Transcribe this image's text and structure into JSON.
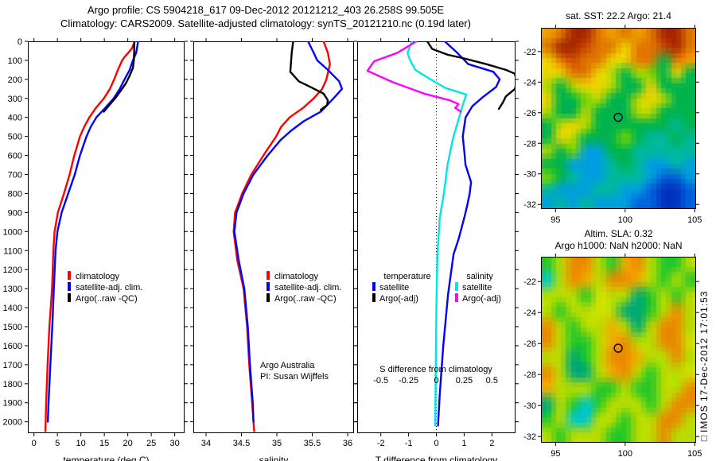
{
  "header": {
    "line1": "Argo profile: CS 5904218_617 09-Dec-2012 20121212_403 26.258S 99.505E",
    "line2": "Climatology: CARS2009. Satellite-adjusted climatology: synTS_20121210.nc (0.19d later)"
  },
  "colors": {
    "climatology": "#ff0000",
    "satellite_adjusted": "#0000ff",
    "argo": "#000000",
    "salinity_satellite": "#00e6e6",
    "salinity_argo": "#ff00ff"
  },
  "watermark": {
    "text": "□IMOS 17-Dec-2012 17:01:53"
  },
  "chart_data": [
    {
      "id": "temperature-profile",
      "type": "line",
      "xlabel": "temperature (deg C)",
      "xlim": [
        -1.3,
        32.1
      ],
      "xticks": [
        0,
        5,
        10,
        15,
        20,
        25,
        30
      ],
      "xtick_labels": [
        "0",
        "5",
        "10",
        "15",
        "20",
        "25",
        "30"
      ],
      "ylim": [
        0,
        2060
      ],
      "ytick_step": 100,
      "ytick_labels_shown": true,
      "legend": [
        {
          "label": "climatology",
          "color": "#ff0000"
        },
        {
          "label": "satellite-adj. clim.",
          "color": "#0000ff"
        },
        {
          "label": "Argo(..raw -QC)",
          "color": "#000000"
        }
      ],
      "series": [
        {
          "name": "climatology",
          "color": "#ff0000",
          "unit_scale": 1,
          "points": [
            [
              0,
              21.5
            ],
            [
              40,
              20.8
            ],
            [
              80,
              19.4
            ],
            [
              100,
              18.8
            ],
            [
              150,
              17.9
            ],
            [
              200,
              17.1
            ],
            [
              250,
              16.2
            ],
            [
              300,
              14.9
            ],
            [
              350,
              13.2
            ],
            [
              400,
              11.8
            ],
            [
              450,
              10.7
            ],
            [
              500,
              9.8
            ],
            [
              600,
              8.6
            ],
            [
              700,
              7.6
            ],
            [
              800,
              6.4
            ],
            [
              900,
              5.1
            ],
            [
              1000,
              4.4
            ],
            [
              1100,
              4.15
            ],
            [
              1300,
              3.85
            ],
            [
              1500,
              3.3
            ],
            [
              1700,
              2.9
            ],
            [
              1900,
              2.6
            ],
            [
              2050,
              2.45
            ]
          ]
        },
        {
          "name": "satellite-adj-clim",
          "color": "#0000ff",
          "unit_scale": 1,
          "points": [
            [
              0,
              22.2
            ],
            [
              60,
              21.8
            ],
            [
              100,
              21.1
            ],
            [
              150,
              20.4
            ],
            [
              200,
              19.3
            ],
            [
              250,
              18.3
            ],
            [
              300,
              17.0
            ],
            [
              350,
              15.2
            ],
            [
              400,
              13.3
            ],
            [
              450,
              12.1
            ],
            [
              500,
              11.2
            ],
            [
              600,
              9.8
            ],
            [
              700,
              8.7
            ],
            [
              800,
              7.3
            ],
            [
              900,
              5.9
            ],
            [
              1000,
              5.0
            ],
            [
              1100,
              4.6
            ],
            [
              1300,
              4.25
            ],
            [
              1500,
              3.9
            ],
            [
              1700,
              3.5
            ],
            [
              1900,
              3.1
            ],
            [
              2000,
              2.95
            ]
          ]
        },
        {
          "name": "argo-raw",
          "color": "#000000",
          "unit_scale": 1,
          "points": [
            [
              0,
              21.4
            ],
            [
              60,
              21.35
            ],
            [
              100,
              21.3
            ],
            [
              140,
              21.1
            ],
            [
              180,
              20.4
            ],
            [
              220,
              19.6
            ],
            [
              260,
              18.5
            ],
            [
              300,
              17.3
            ],
            [
              340,
              15.9
            ],
            [
              370,
              14.9
            ]
          ]
        }
      ]
    },
    {
      "id": "salinity-profile",
      "type": "line",
      "xlabel": "salinity",
      "xlim": [
        33.82,
        36.09
      ],
      "xticks": [
        34,
        34.5,
        35,
        35.5,
        36
      ],
      "xtick_labels": [
        "34",
        "34.5",
        "35",
        "35.5",
        "36"
      ],
      "ylim": [
        0,
        2060
      ],
      "ytick_step": 100,
      "ytick_labels_shown": false,
      "legend": [
        {
          "label": "climatology",
          "color": "#ff0000"
        },
        {
          "label": "satellite-adj. clim.",
          "color": "#0000ff"
        },
        {
          "label": "Argo(..raw -QC)",
          "color": "#000000"
        }
      ],
      "annotations": [
        {
          "text": "Argo Australia"
        },
        {
          "text": "PI: Susan Wijffels"
        }
      ],
      "series": [
        {
          "name": "climatology",
          "color": "#ff0000",
          "unit_scale": 1,
          "points": [
            [
              0,
              35.66
            ],
            [
              60,
              35.72
            ],
            [
              120,
              35.75
            ],
            [
              200,
              35.7
            ],
            [
              250,
              35.64
            ],
            [
              300,
              35.52
            ],
            [
              350,
              35.37
            ],
            [
              400,
              35.18
            ],
            [
              450,
              35.06
            ],
            [
              500,
              34.99
            ],
            [
              600,
              34.81
            ],
            [
              700,
              34.64
            ],
            [
              800,
              34.51
            ],
            [
              900,
              34.41
            ],
            [
              1000,
              34.39
            ],
            [
              1150,
              34.44
            ],
            [
              1300,
              34.53
            ],
            [
              1500,
              34.58
            ],
            [
              1700,
              34.61
            ],
            [
              1900,
              34.65
            ],
            [
              2050,
              34.68
            ]
          ]
        },
        {
          "name": "satellite-adj-clim",
          "color": "#0000ff",
          "unit_scale": 1,
          "points": [
            [
              0,
              35.44
            ],
            [
              60,
              35.52
            ],
            [
              100,
              35.57
            ],
            [
              150,
              35.72
            ],
            [
              210,
              35.88
            ],
            [
              250,
              35.92
            ],
            [
              300,
              35.8
            ],
            [
              370,
              35.62
            ],
            [
              420,
              35.38
            ],
            [
              470,
              35.2
            ],
            [
              520,
              35.05
            ],
            [
              600,
              34.87
            ],
            [
              700,
              34.67
            ],
            [
              800,
              34.53
            ],
            [
              900,
              34.43
            ],
            [
              1000,
              34.4
            ],
            [
              1150,
              34.46
            ],
            [
              1300,
              34.54
            ],
            [
              1500,
              34.59
            ],
            [
              1700,
              34.62
            ],
            [
              1900,
              34.66
            ],
            [
              2000,
              34.67
            ]
          ]
        },
        {
          "name": "argo-raw",
          "color": "#000000",
          "unit_scale": 1,
          "points": [
            [
              0,
              35.23
            ],
            [
              60,
              35.21
            ],
            [
              110,
              35.2
            ],
            [
              160,
              35.19
            ],
            [
              210,
              35.31
            ],
            [
              245,
              35.5
            ],
            [
              275,
              35.66
            ],
            [
              310,
              35.72
            ],
            [
              335,
              35.71
            ],
            [
              360,
              35.62
            ]
          ]
        }
      ]
    },
    {
      "id": "difference-profile",
      "type": "line",
      "xlabel": "T difference from climatology",
      "xlim": [
        -2.85,
        2.85
      ],
      "xticks": [
        -2,
        -1,
        0,
        1,
        2
      ],
      "xtick_labels": [
        "-2",
        "-1",
        "0",
        "1",
        "2"
      ],
      "ylim": [
        0,
        2060
      ],
      "ytick_step": 100,
      "ytick_labels_shown": false,
      "zero_line": true,
      "legend_2col": {
        "col1_header": "temperature",
        "col2_header": "salinity",
        "col1": [
          {
            "label": "satellite",
            "color": "#0000ff"
          },
          {
            "label": "Argo(-adj)",
            "color": "#000000"
          }
        ],
        "col2": [
          {
            "label": "satellite",
            "color": "#00e6e6"
          },
          {
            "label": "Argo(-adj)",
            "color": "#ff00ff"
          }
        ]
      },
      "secondary_axis": {
        "label": "S difference from climatology",
        "tick_labels": [
          "-0.5",
          "-0.25",
          "0",
          "0.25",
          "0.5"
        ],
        "tick_positions": [
          -2,
          -1,
          0,
          1,
          2
        ]
      },
      "series": [
        {
          "name": "t-diff-satellite",
          "color": "#0000ff",
          "unit_scale": 1,
          "points": [
            [
              0,
              0.3
            ],
            [
              60,
              0.75
            ],
            [
              120,
              1.15
            ],
            [
              160,
              2.05
            ],
            [
              200,
              2.28
            ],
            [
              240,
              2.15
            ],
            [
              290,
              1.7
            ],
            [
              340,
              1.3
            ],
            [
              400,
              1.05
            ],
            [
              500,
              0.95
            ],
            [
              570,
              1.0
            ],
            [
              650,
              1.05
            ],
            [
              740,
              1.25
            ],
            [
              800,
              1.2
            ],
            [
              870,
              1.1
            ],
            [
              930,
              1.0
            ],
            [
              1040,
              0.8
            ],
            [
              1120,
              0.62
            ],
            [
              1330,
              0.42
            ],
            [
              1600,
              0.25
            ],
            [
              1860,
              0.12
            ],
            [
              2020,
              0.06
            ]
          ]
        },
        {
          "name": "t-diff-argo-adj",
          "color": "#000000",
          "unit_scale": 1,
          "points": [
            [
              0,
              -0.33
            ],
            [
              40,
              -0.15
            ],
            [
              70,
              0.4
            ],
            [
              90,
              1.0
            ],
            [
              120,
              1.8
            ],
            [
              150,
              2.5
            ],
            [
              170,
              2.82
            ],
            [
              210,
              2.9
            ],
            [
              250,
              2.83
            ],
            [
              290,
              2.5
            ],
            [
              320,
              2.4
            ],
            [
              355,
              2.25
            ]
          ]
        },
        {
          "name": "s-diff-satellite",
          "color": "#00e6e6",
          "unit_scale": 4,
          "points": [
            [
              0,
              -0.22
            ],
            [
              60,
              -0.26
            ],
            [
              95,
              -0.24
            ],
            [
              150,
              -0.19
            ],
            [
              190,
              -0.08
            ],
            [
              245,
              0.08
            ],
            [
              280,
              0.27
            ],
            [
              330,
              0.24
            ],
            [
              430,
              0.19
            ],
            [
              510,
              0.15
            ],
            [
              650,
              0.1
            ],
            [
              790,
              0.07
            ],
            [
              930,
              0.03
            ],
            [
              1120,
              0.01
            ],
            [
              1400,
              0.0
            ],
            [
              1700,
              -0.005
            ],
            [
              2020,
              -0.01
            ]
          ]
        },
        {
          "name": "s-diff-argo-adj",
          "color": "#ff00ff",
          "unit_scale": 4,
          "points": [
            [
              0,
              -0.18
            ],
            [
              60,
              -0.35
            ],
            [
              105,
              -0.56
            ],
            [
              155,
              -0.62
            ],
            [
              215,
              -0.39
            ],
            [
              275,
              -0.11
            ],
            [
              310,
              0.12
            ],
            [
              330,
              0.2
            ],
            [
              350,
              0.17
            ],
            [
              370,
              0.22
            ]
          ]
        }
      ]
    },
    {
      "id": "sst-map",
      "type": "heatmap",
      "title": "sat. SST: 22.2 Argo: 21.4",
      "lon_range": [
        93.95,
        105.1
      ],
      "lat_range": [
        -20.45,
        -32.3
      ],
      "lon_ticks": [
        95,
        100,
        105
      ],
      "lon_tick_labels": [
        "95",
        "100",
        "105"
      ],
      "lat_ticks": [
        -22,
        -24,
        -26,
        -28,
        -30,
        -32
      ],
      "lat_tick_labels": [
        "-22",
        "-24",
        "-26",
        "-28",
        "-30",
        "-32"
      ],
      "marker": {
        "lon": 99.5,
        "lat": -26.3
      },
      "palette": {
        "R": "#a82800",
        "r": "#cc4a00",
        "O": "#e07800",
        "o": "#f0a000",
        "Y": "#ecd400",
        "y": "#b4d800",
        "g": "#7ad600",
        "G": "#00b44c",
        "T": "#00b89c",
        "C": "#009fdc",
        "B": "#0064dc",
        "D": "#0034be"
      },
      "grid": [
        "oORROoOoORRO",
        "ORRrOOYOOrRO",
        "YOrOOYYOOGOo",
        "YYOOYyGygGYG",
        "yGyYYyGGYGGG",
        "YGGgyGGyYyGG",
        "yGGyGGGyyGGG",
        "GyYyGGGGGGTG",
        "GYyGGGgGTTGT",
        "yGgCCGGTTTTT",
        "GGCCCTGTCCTC",
        "gGTCCTTTCBBC",
        "TCCCTTCCBDDB",
        "CTCTCCCBBDDB"
      ]
    },
    {
      "id": "sla-map",
      "type": "heatmap",
      "title_line1": "Altim. SLA: 0.32",
      "title_line2": "Argo h1000: NaN h2000: NaN",
      "lon_range": [
        93.95,
        105.1
      ],
      "lat_range": [
        -20.4,
        -32.4
      ],
      "lon_ticks": [
        95,
        100,
        105
      ],
      "lon_tick_labels": [
        "95",
        "100",
        "105"
      ],
      "lat_ticks": [
        -22,
        -24,
        -26,
        -28,
        -30,
        -32
      ],
      "lat_tick_labels": [
        "-22",
        "-24",
        "-26",
        "-28",
        "-30",
        "-32"
      ],
      "marker": {
        "lon": 99.5,
        "lat": -26.3
      },
      "palette": {
        "O": "#e88c00",
        "o": "#f0ae00",
        "Y": "#e6e000",
        "e": "#d2e200",
        "y": "#b8dc00",
        "G": "#28c828",
        "t": "#00a878",
        "c": "#00c8c8"
      },
      "grid": [
        "GyOOyGoOyGGy",
        "cyOoyOOoyGyG",
        "yyyGeyytGyGy",
        "yGyyeyttGyOy",
        "OyGyyoytyOOy",
        "OyGGyoOyyOOe",
        "yytGyOOoyyOy",
        "OyttyoOyGyye",
        "oyyyGGyGGyyO",
        "tyGcGyyyGyOO",
        "GyccyyGyyOOy",
        "yGyyyGGyyOyy"
      ]
    }
  ]
}
